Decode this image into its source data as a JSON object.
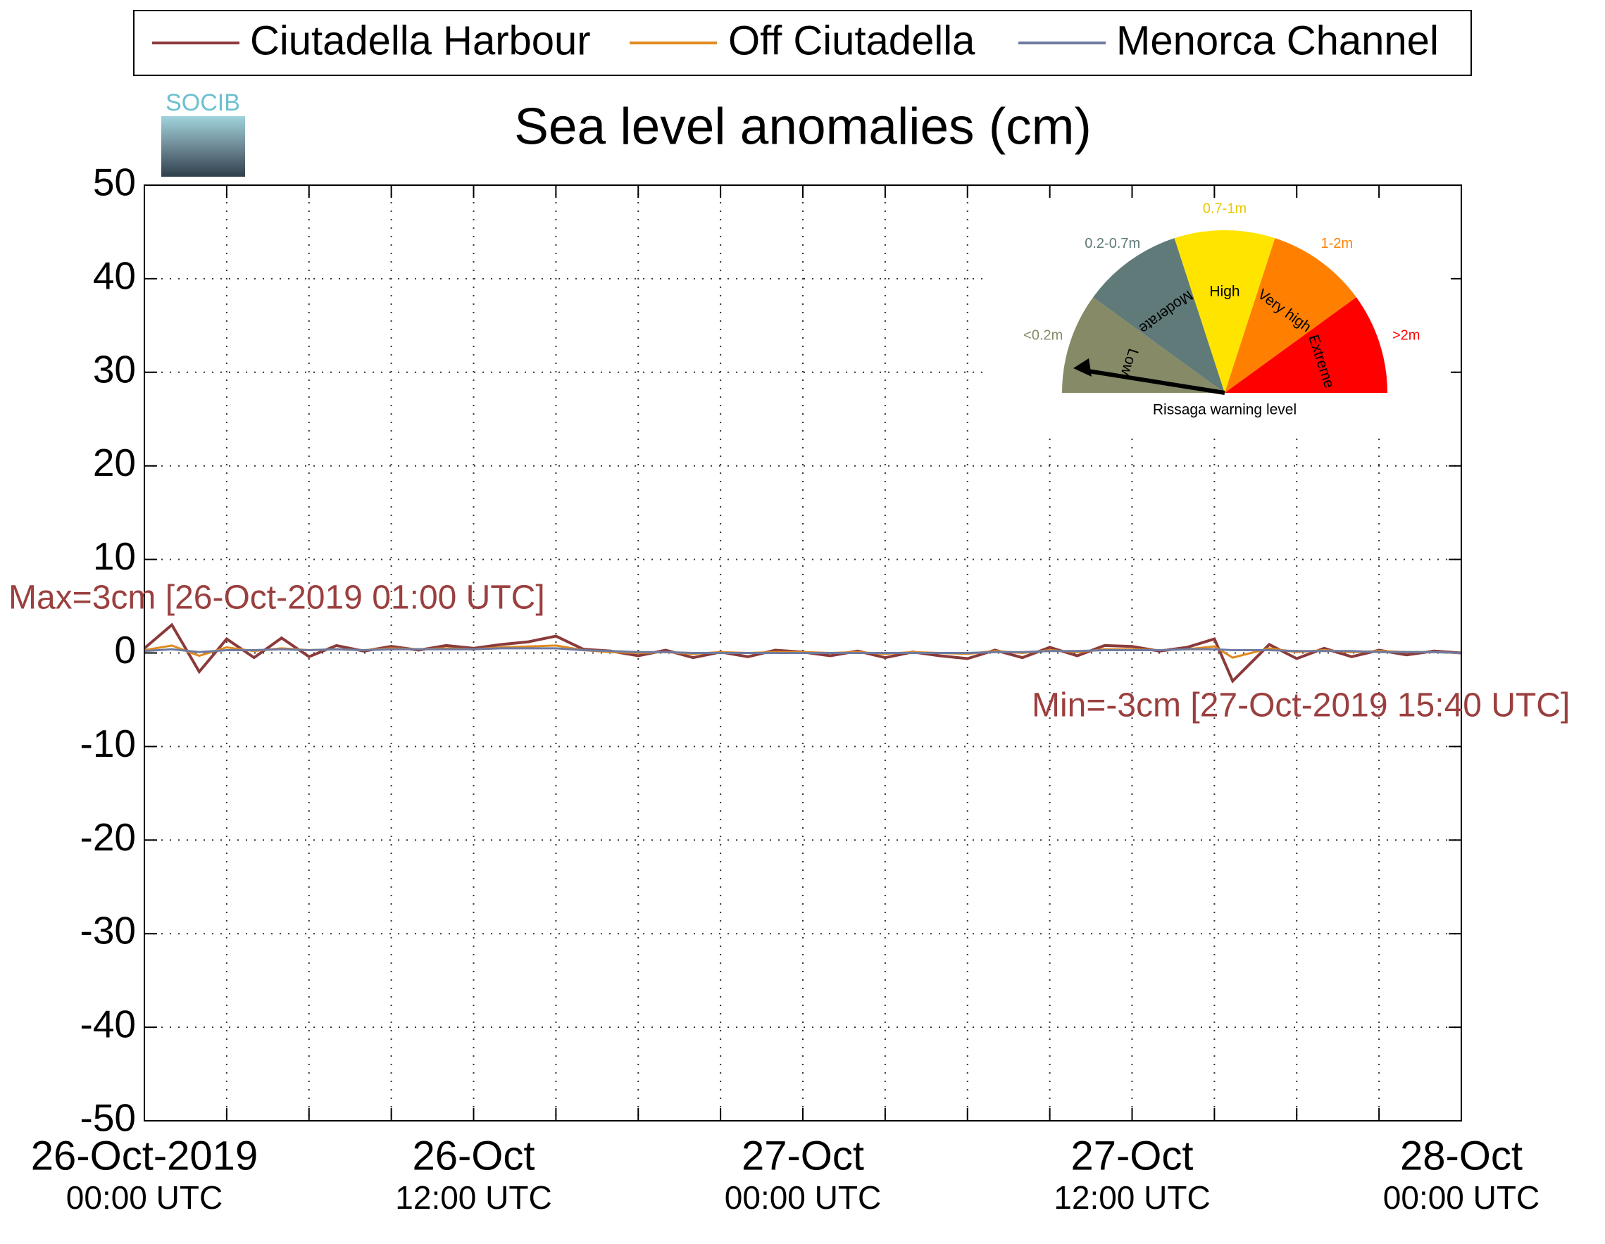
{
  "chart_data": {
    "type": "line",
    "title": "Sea level anomalies (cm)",
    "logo": "SOCIB",
    "x": [
      "2019-10-26 00:00",
      "2019-10-26 01:00",
      "2019-10-26 02:00",
      "2019-10-26 03:00",
      "2019-10-26 04:00",
      "2019-10-26 05:00",
      "2019-10-26 06:00",
      "2019-10-26 07:00",
      "2019-10-26 08:00",
      "2019-10-26 09:00",
      "2019-10-26 10:00",
      "2019-10-26 11:00",
      "2019-10-26 12:00",
      "2019-10-26 13:00",
      "2019-10-26 14:00",
      "2019-10-26 15:00",
      "2019-10-26 16:00",
      "2019-10-26 17:00",
      "2019-10-26 18:00",
      "2019-10-26 19:00",
      "2019-10-26 20:00",
      "2019-10-26 21:00",
      "2019-10-26 22:00",
      "2019-10-26 23:00",
      "2019-10-27 00:00",
      "2019-10-27 01:00",
      "2019-10-27 02:00",
      "2019-10-27 03:00",
      "2019-10-27 04:00",
      "2019-10-27 05:00",
      "2019-10-27 06:00",
      "2019-10-27 07:00",
      "2019-10-27 08:00",
      "2019-10-27 09:00",
      "2019-10-27 10:00",
      "2019-10-27 11:00",
      "2019-10-27 12:00",
      "2019-10-27 13:00",
      "2019-10-27 14:00",
      "2019-10-27 15:00",
      "2019-10-27 15:40",
      "2019-10-27 17:00",
      "2019-10-27 18:00",
      "2019-10-27 19:00",
      "2019-10-27 20:00",
      "2019-10-27 21:00",
      "2019-10-27 22:00",
      "2019-10-27 23:00",
      "2019-10-28 00:00"
    ],
    "series": [
      {
        "name": "Ciutadella Harbour",
        "color": "#8b3a3a",
        "values": [
          0.5,
          3,
          -2,
          1.5,
          -0.5,
          1.6,
          -0.4,
          0.8,
          0.2,
          0.7,
          0.3,
          0.8,
          0.5,
          0.9,
          1.2,
          1.8,
          0.4,
          0.2,
          -0.3,
          0.3,
          -0.5,
          0.1,
          -0.4,
          0.3,
          0.1,
          -0.3,
          0.2,
          -0.5,
          0.1,
          -0.3,
          -0.6,
          0.3,
          -0.5,
          0.6,
          -0.3,
          0.8,
          0.7,
          0.2,
          0.6,
          1.5,
          -3,
          0.9,
          -0.6,
          0.5,
          -0.4,
          0.3,
          -0.2,
          0.2,
          0
        ]
      },
      {
        "name": "Off Ciutadella",
        "color": "#e08a1e",
        "values": [
          0.3,
          0.8,
          -0.3,
          0.6,
          0.2,
          0.5,
          0.3,
          0.4,
          0.3,
          0.5,
          0.4,
          0.5,
          0.4,
          0.6,
          0.7,
          0.8,
          0.3,
          0.1,
          0,
          0.1,
          -0.1,
          0.1,
          0,
          0.1,
          0.1,
          0,
          0.1,
          -0.1,
          0.1,
          0,
          -0.1,
          0.2,
          0,
          0.3,
          0.1,
          0.4,
          0.4,
          0.3,
          0.4,
          0.7,
          -0.5,
          0.5,
          0.1,
          0.3,
          0.1,
          0.2,
          0.1,
          0.1,
          0
        ]
      },
      {
        "name": "Menorca Channel",
        "color": "#6e7aa0",
        "values": [
          0.2,
          0.4,
          0.1,
          0.3,
          0.3,
          0.4,
          0.3,
          0.4,
          0.3,
          0.4,
          0.4,
          0.4,
          0.4,
          0.5,
          0.5,
          0.5,
          0.3,
          0.2,
          0.1,
          0.1,
          0,
          0,
          0,
          0,
          0,
          0,
          0,
          0,
          0,
          0,
          0,
          0.1,
          0.1,
          0.2,
          0.2,
          0.3,
          0.3,
          0.3,
          0.4,
          0.4,
          0.3,
          0.3,
          0.2,
          0.2,
          0.2,
          0.1,
          0.1,
          0.1,
          0
        ]
      }
    ],
    "xlim": [
      "2019-10-26 00:00",
      "2019-10-28 00:00"
    ],
    "xticks": [
      {
        "value": "2019-10-26 00:00",
        "label": "26-Oct-2019",
        "time_label": "00:00 UTC"
      },
      {
        "value": "2019-10-26 12:00",
        "label": "26-Oct",
        "time_label": "12:00 UTC"
      },
      {
        "value": "2019-10-27 00:00",
        "label": "27-Oct",
        "time_label": "00:00 UTC"
      },
      {
        "value": "2019-10-27 12:00",
        "label": "27-Oct",
        "time_label": "12:00 UTC"
      },
      {
        "value": "2019-10-28 00:00",
        "label": "28-Oct",
        "time_label": "00:00 UTC"
      }
    ],
    "xminorticks": [
      "2019-10-26 03:00",
      "2019-10-26 06:00",
      "2019-10-26 09:00",
      "2019-10-26 15:00",
      "2019-10-26 18:00",
      "2019-10-26 21:00",
      "2019-10-27 03:00",
      "2019-10-27 06:00",
      "2019-10-27 09:00",
      "2019-10-27 15:00",
      "2019-10-27 18:00",
      "2019-10-27 21:00"
    ],
    "ylim": [
      -50,
      50
    ],
    "yticks": [
      -50,
      -40,
      -30,
      -20,
      -10,
      0,
      10,
      20,
      30,
      40,
      50
    ],
    "grid": true,
    "legend": "top",
    "annotations": [
      {
        "text": "Max=3cm [26-Oct-2019 01:00 UTC]",
        "color": "#9b3f3f"
      },
      {
        "text": "Min=-3cm [27-Oct-2019 15:40 UTC]",
        "color": "#9b3f3f"
      }
    ],
    "warning_gauge": {
      "title": "Rissaga warning level",
      "levels": [
        {
          "name": "Low",
          "range": "<0.2m",
          "color": "#868a67"
        },
        {
          "name": "Moderate",
          "range": "0.2-0.7m",
          "color": "#5f7a78"
        },
        {
          "name": "High",
          "range": "0.7-1m",
          "color": "#ffe400"
        },
        {
          "name": "Very high",
          "range": "1-2m",
          "color": "#ff8000"
        },
        {
          "name": "Extreme",
          "range": ">2m",
          "color": "#ff0000"
        }
      ]
    }
  }
}
